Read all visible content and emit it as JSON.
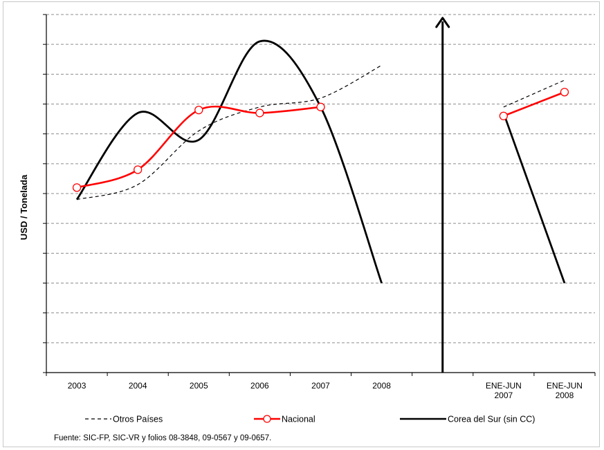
{
  "chart_data": {
    "type": "line",
    "ylabel": "USD / Tonelada",
    "xlabel": "",
    "title": "",
    "yaxis_tick_labels": false,
    "categories": [
      "2003",
      "2004",
      "2005",
      "2006",
      "2007",
      "2008",
      "",
      "ENE-JUN 2007",
      "ENE-JUN 2008"
    ],
    "ylim": [
      0,
      12
    ],
    "grid": "horizontal",
    "legend_position": "bottom",
    "series": [
      {
        "name": "Otros Países",
        "color": "#000000",
        "style": "dashed",
        "markers": false,
        "values": [
          5.8,
          6.3,
          8.1,
          8.9,
          9.2,
          10.3,
          null,
          8.9,
          9.8
        ]
      },
      {
        "name": "Nacional",
        "color": "#ff0000",
        "style": "solid",
        "markers": true,
        "values": [
          6.2,
          6.8,
          8.8,
          8.7,
          8.9,
          null,
          null,
          8.6,
          9.4
        ]
      },
      {
        "name": "Corea del Sur (sin CC)",
        "color": "#000000",
        "style": "solid",
        "markers": false,
        "values": [
          5.8,
          8.7,
          7.8,
          11.1,
          8.9,
          3.0,
          null,
          8.7,
          3.0
        ]
      }
    ],
    "annotations": [
      "vertical-arrow-separator"
    ]
  },
  "source_note": "Fuente: SIC-FP, SIC-VR y folios 08-3848,  09-0567 y 09-0657."
}
